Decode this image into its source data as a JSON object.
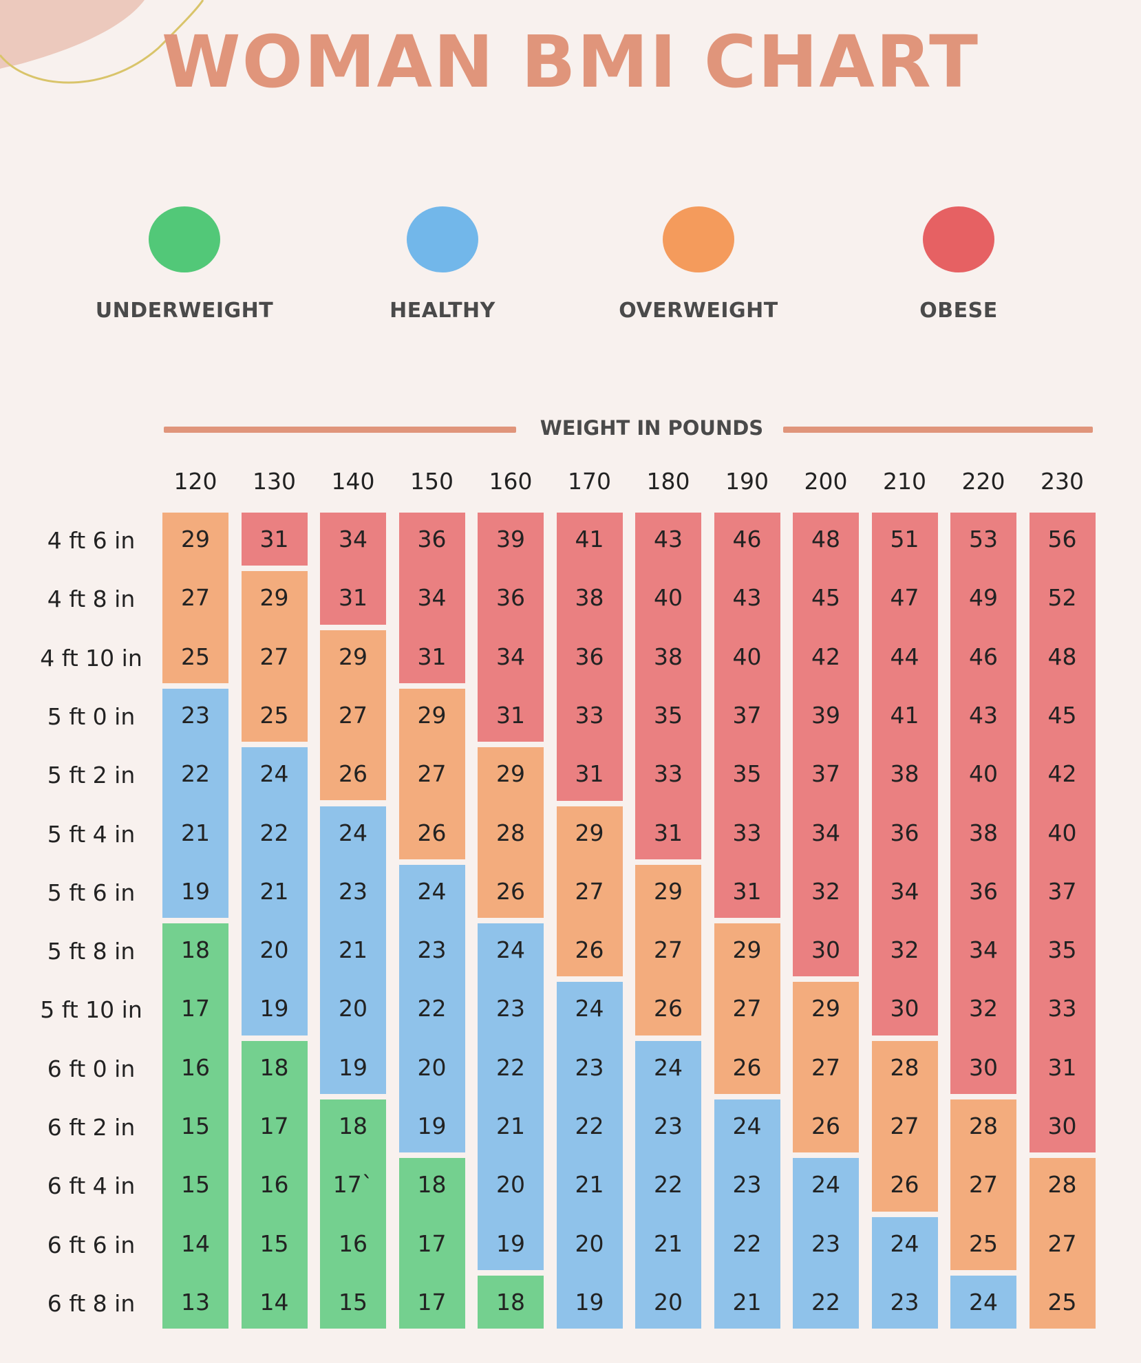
{
  "title": "WOMAN BMI CHART",
  "legend": [
    {
      "label": "UNDERWEIGHT",
      "color": "#52c878"
    },
    {
      "label": "HEALTHY",
      "color": "#72b7ea"
    },
    {
      "label": "OVERWEIGHT",
      "color": "#f49b5c"
    },
    {
      "label": "OBESE",
      "color": "#e66163"
    }
  ],
  "category_colors": {
    "underweight": "#74d08f",
    "healthy": "#8fc2ea",
    "overweight": "#f3ac7d",
    "obese": "#ea8081"
  },
  "chart_data": {
    "type": "table",
    "title": "WOMAN BMI CHART",
    "xlabel": "WEIGHT IN POUNDS",
    "weights": [
      "120",
      "130",
      "140",
      "150",
      "160",
      "170",
      "180",
      "190",
      "200",
      "210",
      "220",
      "230"
    ],
    "heights": [
      "4 ft 6 in",
      "4 ft 8 in",
      "4 ft 10 in",
      "5 ft 0 in",
      "5 ft 2 in",
      "5 ft 4 in",
      "5 ft 6 in",
      "5 ft 8 in",
      "5 ft 10 in",
      "6 ft 0 in",
      "6 ft 2 in",
      "6 ft 4 in",
      "6 ft 6 in",
      "6 ft 8 in"
    ],
    "columns": [
      {
        "weight": "120",
        "values": [
          "29",
          "27",
          "25",
          "23",
          "22",
          "21",
          "19",
          "18",
          "17",
          "16",
          "15",
          "15",
          "14",
          "13"
        ],
        "categories": [
          "overweight",
          "overweight",
          "overweight",
          "healthy",
          "healthy",
          "healthy",
          "healthy",
          "underweight",
          "underweight",
          "underweight",
          "underweight",
          "underweight",
          "underweight",
          "underweight"
        ]
      },
      {
        "weight": "130",
        "values": [
          "31",
          "29",
          "27",
          "25",
          "24",
          "22",
          "21",
          "20",
          "19",
          "18",
          "17",
          "16",
          "15",
          "14"
        ],
        "categories": [
          "obese",
          "overweight",
          "overweight",
          "overweight",
          "healthy",
          "healthy",
          "healthy",
          "healthy",
          "healthy",
          "underweight",
          "underweight",
          "underweight",
          "underweight",
          "underweight"
        ]
      },
      {
        "weight": "140",
        "values": [
          "34",
          "31",
          "29",
          "27",
          "26",
          "24",
          "23",
          "21",
          "20",
          "19",
          "18",
          "17`",
          "16",
          "15"
        ],
        "categories": [
          "obese",
          "obese",
          "overweight",
          "overweight",
          "overweight",
          "healthy",
          "healthy",
          "healthy",
          "healthy",
          "healthy",
          "underweight",
          "underweight",
          "underweight",
          "underweight"
        ]
      },
      {
        "weight": "150",
        "values": [
          "36",
          "34",
          "31",
          "29",
          "27",
          "26",
          "24",
          "23",
          "22",
          "20",
          "19",
          "18",
          "17",
          "17"
        ],
        "categories": [
          "obese",
          "obese",
          "obese",
          "overweight",
          "overweight",
          "overweight",
          "healthy",
          "healthy",
          "healthy",
          "healthy",
          "healthy",
          "underweight",
          "underweight",
          "underweight"
        ]
      },
      {
        "weight": "160",
        "values": [
          "39",
          "36",
          "34",
          "31",
          "29",
          "28",
          "26",
          "24",
          "23",
          "22",
          "21",
          "20",
          "19",
          "18"
        ],
        "categories": [
          "obese",
          "obese",
          "obese",
          "obese",
          "overweight",
          "overweight",
          "overweight",
          "healthy",
          "healthy",
          "healthy",
          "healthy",
          "healthy",
          "healthy",
          "underweight"
        ]
      },
      {
        "weight": "170",
        "values": [
          "41",
          "38",
          "36",
          "33",
          "31",
          "29",
          "27",
          "26",
          "24",
          "23",
          "22",
          "21",
          "20",
          "19"
        ],
        "categories": [
          "obese",
          "obese",
          "obese",
          "obese",
          "obese",
          "overweight",
          "overweight",
          "overweight",
          "healthy",
          "healthy",
          "healthy",
          "healthy",
          "healthy",
          "healthy"
        ]
      },
      {
        "weight": "180",
        "values": [
          "43",
          "40",
          "38",
          "35",
          "33",
          "31",
          "29",
          "27",
          "26",
          "24",
          "23",
          "22",
          "21",
          "20"
        ],
        "categories": [
          "obese",
          "obese",
          "obese",
          "obese",
          "obese",
          "obese",
          "overweight",
          "overweight",
          "overweight",
          "healthy",
          "healthy",
          "healthy",
          "healthy",
          "healthy"
        ]
      },
      {
        "weight": "190",
        "values": [
          "46",
          "43",
          "40",
          "37",
          "35",
          "33",
          "31",
          "29",
          "27",
          "26",
          "24",
          "23",
          "22",
          "21"
        ],
        "categories": [
          "obese",
          "obese",
          "obese",
          "obese",
          "obese",
          "obese",
          "obese",
          "overweight",
          "overweight",
          "overweight",
          "healthy",
          "healthy",
          "healthy",
          "healthy"
        ]
      },
      {
        "weight": "200",
        "values": [
          "48",
          "45",
          "42",
          "39",
          "37",
          "34",
          "32",
          "30",
          "29",
          "27",
          "26",
          "24",
          "23",
          "22"
        ],
        "categories": [
          "obese",
          "obese",
          "obese",
          "obese",
          "obese",
          "obese",
          "obese",
          "obese",
          "overweight",
          "overweight",
          "overweight",
          "healthy",
          "healthy",
          "healthy"
        ]
      },
      {
        "weight": "210",
        "values": [
          "51",
          "47",
          "44",
          "41",
          "38",
          "36",
          "34",
          "32",
          "30",
          "28",
          "27",
          "26",
          "24",
          "23"
        ],
        "categories": [
          "obese",
          "obese",
          "obese",
          "obese",
          "obese",
          "obese",
          "obese",
          "obese",
          "obese",
          "overweight",
          "overweight",
          "overweight",
          "healthy",
          "healthy"
        ]
      },
      {
        "weight": "220",
        "values": [
          "53",
          "49",
          "46",
          "43",
          "40",
          "38",
          "36",
          "34",
          "32",
          "30",
          "28",
          "27",
          "25",
          "24"
        ],
        "categories": [
          "obese",
          "obese",
          "obese",
          "obese",
          "obese",
          "obese",
          "obese",
          "obese",
          "obese",
          "obese",
          "overweight",
          "overweight",
          "overweight",
          "healthy"
        ]
      },
      {
        "weight": "230",
        "values": [
          "56",
          "52",
          "48",
          "45",
          "42",
          "40",
          "37",
          "35",
          "33",
          "31",
          "30",
          "28",
          "27",
          "25"
        ],
        "categories": [
          "obese",
          "obese",
          "obese",
          "obese",
          "obese",
          "obese",
          "obese",
          "obese",
          "obese",
          "obese",
          "obese",
          "overweight",
          "overweight",
          "overweight"
        ]
      }
    ]
  }
}
